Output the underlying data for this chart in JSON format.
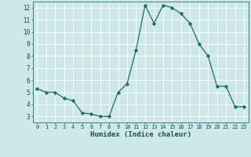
{
  "x": [
    0,
    1,
    2,
    3,
    4,
    5,
    6,
    7,
    8,
    9,
    10,
    11,
    12,
    13,
    14,
    15,
    16,
    17,
    18,
    19,
    20,
    21,
    22,
    23
  ],
  "y": [
    5.3,
    5.0,
    5.0,
    4.5,
    4.3,
    3.3,
    3.2,
    3.0,
    3.0,
    5.0,
    5.7,
    8.5,
    12.2,
    10.7,
    12.2,
    12.0,
    11.5,
    10.7,
    9.0,
    8.0,
    5.5,
    5.5,
    3.8,
    3.8
  ],
  "line_color": "#1a7060",
  "marker": "D",
  "marker_size": 2.2,
  "bg_color": "#cce8e8",
  "grid_color": "#ffffff",
  "xlabel": "Humidex (Indice chaleur)",
  "xlim": [
    -0.5,
    23.5
  ],
  "ylim": [
    2.5,
    12.5
  ],
  "xticks": [
    0,
    1,
    2,
    3,
    4,
    5,
    6,
    7,
    8,
    9,
    10,
    11,
    12,
    13,
    14,
    15,
    16,
    17,
    18,
    19,
    20,
    21,
    22,
    23
  ],
  "xtick_labels": [
    "0",
    "1",
    "2",
    "3",
    "4",
    "5",
    "6",
    "7",
    "8",
    "9",
    "10",
    "11",
    "12",
    "13",
    "14",
    "15",
    "16",
    "17",
    "18",
    "19",
    "20",
    "21",
    "22",
    "23"
  ],
  "yticks": [
    3,
    4,
    5,
    6,
    7,
    8,
    9,
    10,
    11,
    12
  ],
  "ytick_labels": [
    "3",
    "4",
    "5",
    "6",
    "7",
    "8",
    "9",
    "10",
    "11",
    "12"
  ]
}
